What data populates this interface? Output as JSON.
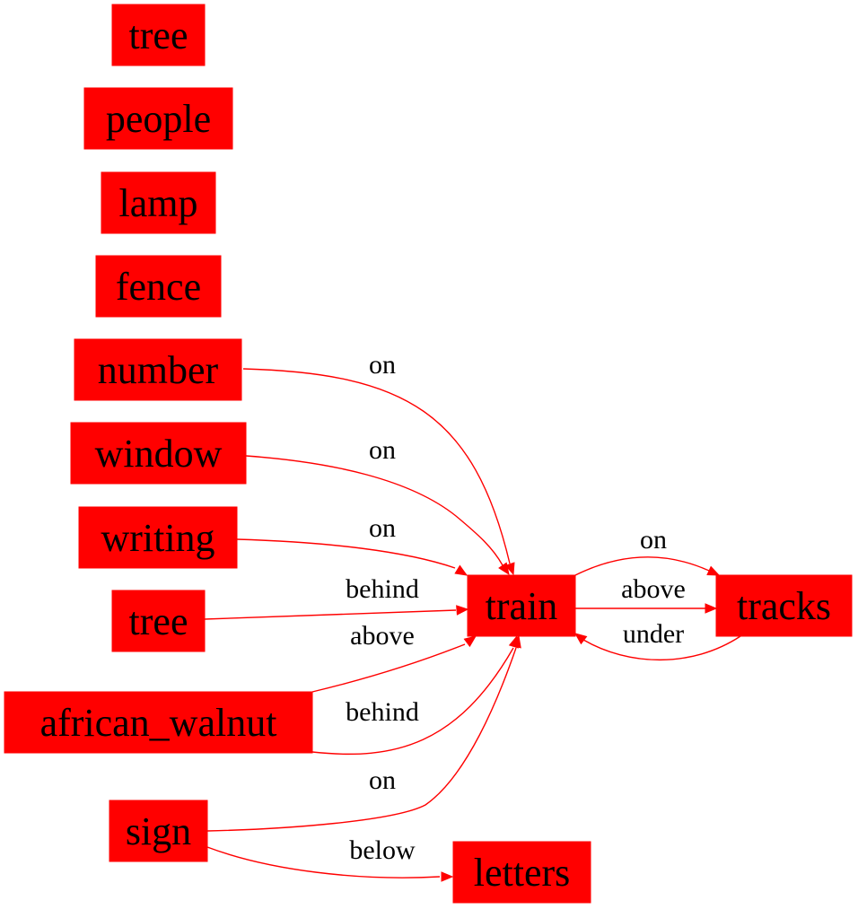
{
  "colors": {
    "node_fill": "#ff0000",
    "edge": "#ff0000",
    "text": "#000000"
  },
  "nodes": [
    {
      "id": "tree_1",
      "label": "tree"
    },
    {
      "id": "people",
      "label": "people"
    },
    {
      "id": "lamp",
      "label": "lamp"
    },
    {
      "id": "fence",
      "label": "fence"
    },
    {
      "id": "number",
      "label": "number"
    },
    {
      "id": "window",
      "label": "window"
    },
    {
      "id": "writing",
      "label": "writing"
    },
    {
      "id": "tree_2",
      "label": "tree"
    },
    {
      "id": "african_walnut",
      "label": "african_walnut"
    },
    {
      "id": "sign",
      "label": "sign"
    },
    {
      "id": "train",
      "label": "train"
    },
    {
      "id": "tracks",
      "label": "tracks"
    },
    {
      "id": "letters",
      "label": "letters"
    }
  ],
  "edges": [
    {
      "from": "number",
      "to": "train",
      "label": "on"
    },
    {
      "from": "window",
      "to": "train",
      "label": "on"
    },
    {
      "from": "writing",
      "to": "train",
      "label": "on"
    },
    {
      "from": "tree_2",
      "to": "train",
      "label": "behind"
    },
    {
      "from": "african_walnut",
      "to": "train",
      "label": "above"
    },
    {
      "from": "african_walnut",
      "to": "train",
      "label": "behind"
    },
    {
      "from": "sign",
      "to": "train",
      "label": "on"
    },
    {
      "from": "sign",
      "to": "letters",
      "label": "below"
    },
    {
      "from": "train",
      "to": "tracks",
      "label": "on"
    },
    {
      "from": "train",
      "to": "tracks",
      "label": "above"
    },
    {
      "from": "tracks",
      "to": "train",
      "label": "under"
    }
  ]
}
